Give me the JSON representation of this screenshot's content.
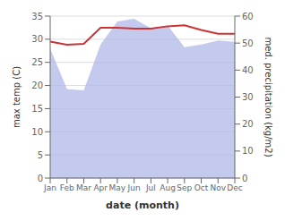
{
  "chart_data": {
    "type": "line",
    "xlabel": "date (month)",
    "ylabel": "max temp (C)",
    "y2label": "med. precipitation (kg/m2)",
    "categories": [
      "Jan",
      "Feb",
      "Mar",
      "Apr",
      "May",
      "Jun",
      "Jul",
      "Aug",
      "Sep",
      "Oct",
      "Nov",
      "Dec"
    ],
    "series": [
      {
        "type": "line",
        "color": "#cc3333",
        "values": [
          29.5,
          28.8,
          29.0,
          32.5,
          32.5,
          32.3,
          32.3,
          32.8,
          33.0,
          32.0,
          31.2,
          31.2
        ]
      },
      {
        "type": "area",
        "axis": "y2",
        "color": "#b0b8e8",
        "values": [
          48.0,
          33.0,
          32.5,
          49.5,
          58.0,
          59.0,
          55.5,
          56.5,
          48.5,
          49.5,
          51.0,
          50.5
        ]
      }
    ],
    "ylim": [
      0,
      35
    ],
    "yticks": [
      0,
      5,
      10,
      15,
      20,
      25,
      30,
      35
    ],
    "y2lim": [
      0,
      60
    ],
    "y2ticks": [
      0,
      10,
      20,
      30,
      40,
      50,
      60
    ],
    "grid": true
  }
}
